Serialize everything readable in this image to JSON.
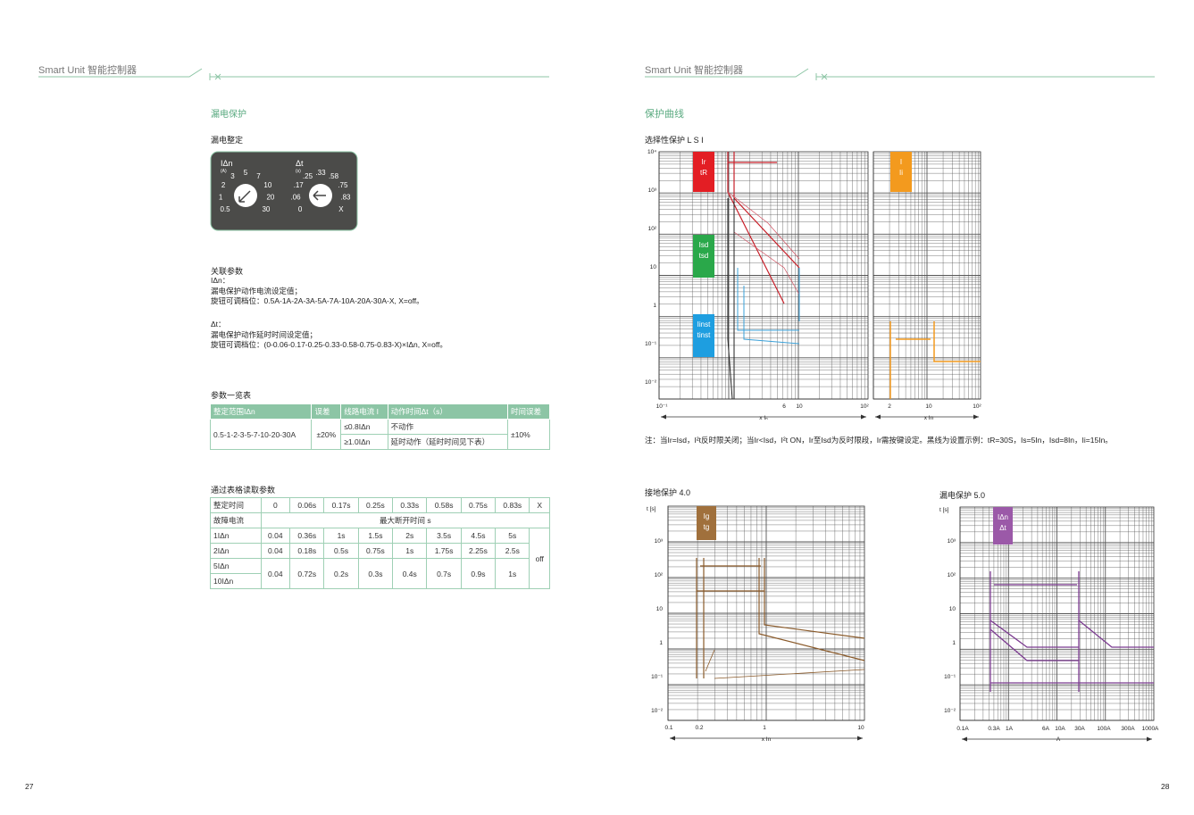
{
  "left_page": {
    "header": "Smart Unit 智能控制器",
    "section": "漏电保护",
    "subsection": "漏电整定",
    "dial": {
      "left_symbol": "IΔn",
      "left_unit": "(A)",
      "left_labels": [
        "0.5",
        "1",
        "2",
        "3",
        "5",
        "7",
        "10",
        "20",
        "30"
      ],
      "right_symbol": "Δt",
      "right_unit": "(s)",
      "right_labels": [
        "0",
        ".06",
        ".17",
        ".25",
        ".33",
        ".58",
        ".75",
        ".83",
        "X"
      ]
    },
    "params_title": "关联参数",
    "params_current": [
      "IΔn：",
      "漏电保护动作电流设定值；",
      "旋钮可调档位：0.5A-1A-2A-3A-5A-7A-10A-20A-30A-X, X=off。"
    ],
    "params_time": [
      "Δt：",
      "漏电保护动作延时时间设定值；",
      "旋钮可调档位：(0-0.06-0.17-0.25-0.33-0.58-0.75-0.83-X)×IΔn, X=off。"
    ],
    "table1": {
      "title": "参数一览表",
      "header": [
        "整定范围IΔn",
        "误差",
        "线路电流 I",
        "动作时间Δt（s）",
        "时间误差"
      ],
      "range": "0.5-1-2-3-5-7-10-20-30A",
      "error": "±20%",
      "time_error": "±10%",
      "rows": [
        [
          "≤0.8IΔn",
          "不动作"
        ],
        [
          "≥1.0IΔn",
          "延时动作（延时时间见下表）"
        ]
      ]
    },
    "table2": {
      "title": "通过表格读取参数",
      "setting_label": "整定时间",
      "settings": [
        "0",
        "0.06s",
        "0.17s",
        "0.25s",
        "0.33s",
        "0.58s",
        "0.75s",
        "0.83s",
        "X"
      ],
      "fault_label": "故障电流",
      "span_label": "最大断开时间 s",
      "off": "off",
      "rows": [
        {
          "label": "1IΔn",
          "values": [
            "0.04",
            "0.36s",
            "1s",
            "1.5s",
            "2s",
            "3.5s",
            "4.5s",
            "5s"
          ]
        },
        {
          "label": "2IΔn",
          "values": [
            "0.04",
            "0.18s",
            "0.5s",
            "0.75s",
            "1s",
            "1.75s",
            "2.25s",
            "2.5s"
          ]
        }
      ],
      "merged_labels": [
        "5IΔn",
        "10IΔn"
      ],
      "merged_values": [
        "0.04",
        "0.72s",
        "0.2s",
        "0.3s",
        "0.4s",
        "0.7s",
        "0.9s",
        "1s"
      ]
    },
    "page_number": "27"
  },
  "right_page": {
    "header": "Smart Unit 智能控制器",
    "section": "保护曲线",
    "chart1": {
      "title": "选择性保护 L S I",
      "yticks": [
        "10⁴",
        "10³",
        "10²",
        "10",
        "1",
        "10⁻¹",
        "10⁻²"
      ],
      "xticks": [
        "10⁻¹",
        "6",
        "10",
        "10²"
      ],
      "xlabel": "x Iₙ",
      "xticks2": [
        "2",
        "10",
        "10²"
      ],
      "xlabel2": "x In",
      "boxes": [
        [
          "Ir",
          "tR"
        ],
        [
          "Isd",
          "tsd"
        ],
        [
          "Iinst",
          "tinst"
        ],
        [
          "I",
          "Ii"
        ]
      ]
    },
    "note": "注：当Ir=Isd，I²t反时限关闭；当Ir<Isd，I²t ON，Ir至Isd为反时限段，Ir需按键设定。黑线为设置示例：tR=30S，Is=5In，Isd=8In，Ii=15In。",
    "chart2": {
      "title": "接地保护 4.0",
      "yunit": "t [s]",
      "yticks": [
        "10³",
        "10²",
        "10",
        "1",
        "10⁻¹",
        "10⁻²"
      ],
      "xticks": [
        "0.1",
        "0.2",
        "1",
        "10"
      ],
      "xlabel": "x In",
      "box": [
        "Ig",
        "tg"
      ]
    },
    "chart3": {
      "title": "漏电保护 5.0",
      "yunit": "t [s]",
      "yticks": [
        "10³",
        "10²",
        "10",
        "1",
        "10⁻¹",
        "10⁻²"
      ],
      "xticks": [
        "0.1A",
        "0.3A",
        "1A",
        "6A",
        "10A",
        "30A",
        "100A",
        "300A",
        "1000A"
      ],
      "xlabel": "A",
      "box": [
        "IΔn",
        "Δt"
      ]
    },
    "page_number": "28"
  }
}
